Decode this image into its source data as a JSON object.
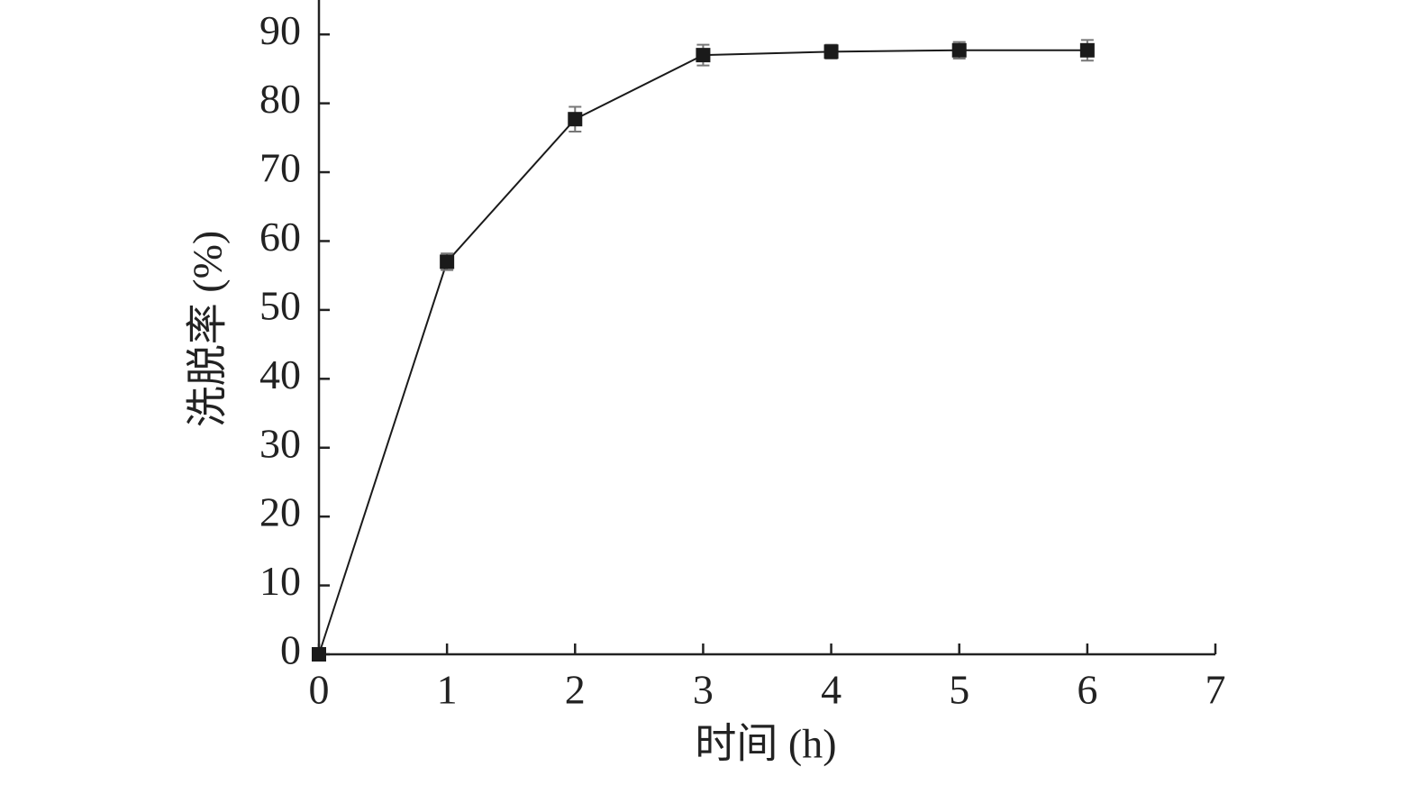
{
  "chart_data": {
    "type": "line",
    "x_label": "时间 (h)",
    "y_label": "洗脱率 (%)",
    "x": [
      0,
      1,
      2,
      3,
      4,
      5,
      6
    ],
    "series": [
      {
        "color": "#1a1a1a",
        "values": [
          0,
          57,
          77.7,
          87,
          87.5,
          87.7,
          87.7
        ],
        "errors": [
          0,
          1.2,
          1.8,
          1.5,
          1,
          1.2,
          1.5
        ]
      }
    ],
    "xlim": [
      0,
      7
    ],
    "xticks": [
      0,
      1,
      2,
      3,
      4,
      5,
      6,
      7
    ],
    "ylim": [
      0,
      95
    ],
    "yticks": [
      0,
      10,
      20,
      30,
      40,
      50,
      60,
      70,
      80,
      90
    ]
  }
}
